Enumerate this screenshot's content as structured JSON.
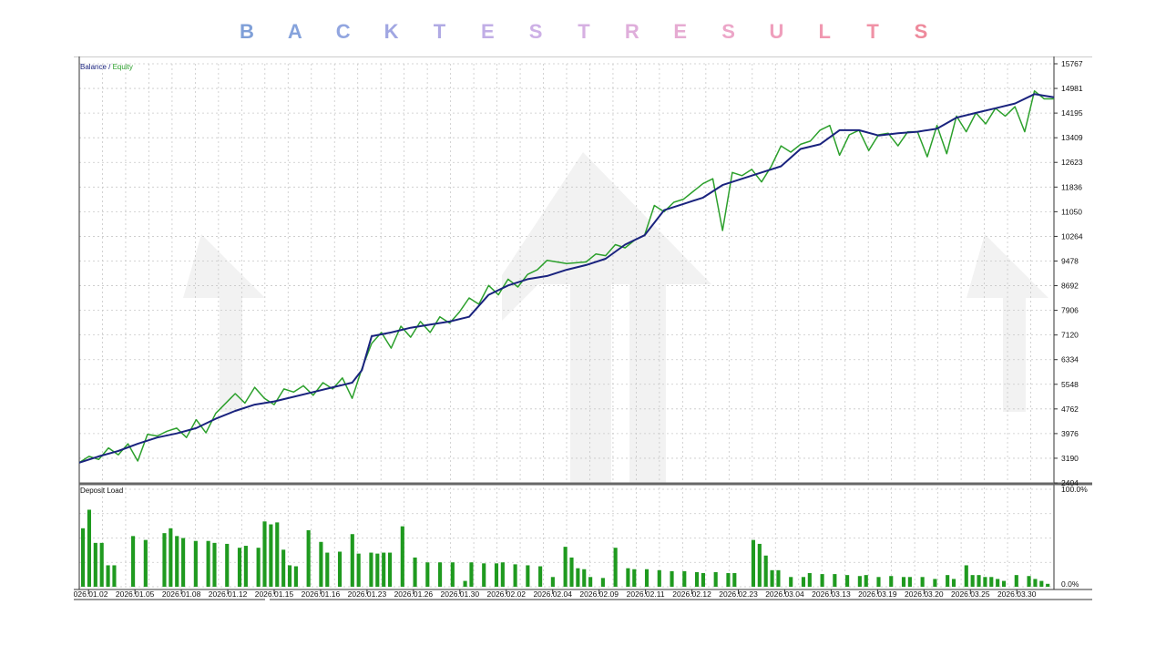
{
  "title": {
    "letters": [
      "B",
      "A",
      "C",
      "K",
      "T",
      "E",
      "S",
      "T",
      "R",
      "E",
      "S",
      "U",
      "L",
      "T",
      "S"
    ],
    "colors": [
      "#7f9fd8",
      "#86a3dc",
      "#92a6e0",
      "#a0a6e2",
      "#b0aae4",
      "#c1aee6",
      "#cdb0e6",
      "#d6b0e2",
      "#dfaedb",
      "#e6abd2",
      "#eca6c8",
      "#ef9fbc",
      "#f098b0",
      "#f092a6",
      "#ee8a9c"
    ]
  },
  "panels": {
    "balance_legend": {
      "balance": "Balance",
      "separator": " / ",
      "equity": "Equity"
    },
    "deposit_legend": "Deposit Load"
  },
  "colors": {
    "balance": "#1a237e",
    "equity": "#2ca02c",
    "deposit": "#1f9a1f",
    "grid": "#c8c8c8",
    "axis": "#333333"
  },
  "chart_data": [
    {
      "type": "line",
      "x_type": "index",
      "y_ticks": [
        "15767",
        "14981",
        "14195",
        "13409",
        "12623",
        "11836",
        "11050",
        "10264",
        "9478",
        "8692",
        "7906",
        "7120",
        "6334",
        "5548",
        "4762",
        "3976",
        "3190",
        "2404"
      ],
      "ylim": [
        2404,
        15767
      ],
      "x_domain": [
        0,
        100
      ],
      "series": [
        {
          "name": "Balance",
          "points": [
            [
              0,
              3050
            ],
            [
              2,
              3250
            ],
            [
              4,
              3420
            ],
            [
              6,
              3650
            ],
            [
              8,
              3850
            ],
            [
              10,
              3980
            ],
            [
              12,
              4150
            ],
            [
              14,
              4450
            ],
            [
              16,
              4700
            ],
            [
              18,
              4900
            ],
            [
              20,
              5000
            ],
            [
              22,
              5150
            ],
            [
              24,
              5300
            ],
            [
              26,
              5450
            ],
            [
              28,
              5600
            ],
            [
              29,
              6000
            ],
            [
              30,
              7080
            ],
            [
              32,
              7200
            ],
            [
              34,
              7350
            ],
            [
              36,
              7450
            ],
            [
              38,
              7550
            ],
            [
              40,
              7700
            ],
            [
              42,
              8400
            ],
            [
              44,
              8700
            ],
            [
              46,
              8900
            ],
            [
              48,
              9000
            ],
            [
              50,
              9200
            ],
            [
              52,
              9350
            ],
            [
              54,
              9550
            ],
            [
              56,
              10000
            ],
            [
              58,
              10300
            ],
            [
              60,
              11100
            ],
            [
              62,
              11300
            ],
            [
              64,
              11500
            ],
            [
              66,
              11900
            ],
            [
              68,
              12100
            ],
            [
              70,
              12300
            ],
            [
              72,
              12500
            ],
            [
              74,
              13050
            ],
            [
              76,
              13200
            ],
            [
              78,
              13650
            ],
            [
              80,
              13650
            ],
            [
              82,
              13480
            ],
            [
              84,
              13550
            ],
            [
              86,
              13600
            ],
            [
              88,
              13700
            ],
            [
              90,
              14050
            ],
            [
              92,
              14200
            ],
            [
              94,
              14350
            ],
            [
              96,
              14500
            ],
            [
              98,
              14800
            ],
            [
              100,
              14700
            ]
          ]
        },
        {
          "name": "Equity",
          "points": [
            [
              0,
              3050
            ],
            [
              1,
              3250
            ],
            [
              2,
              3150
            ],
            [
              3,
              3520
            ],
            [
              4,
              3300
            ],
            [
              5,
              3650
            ],
            [
              6,
              3100
            ],
            [
              7,
              3950
            ],
            [
              8,
              3900
            ],
            [
              9,
              4050
            ],
            [
              10,
              4150
            ],
            [
              11,
              3850
            ],
            [
              12,
              4420
            ],
            [
              13,
              4000
            ],
            [
              14,
              4620
            ],
            [
              16,
              5250
            ],
            [
              17,
              4950
            ],
            [
              18,
              5450
            ],
            [
              19,
              5100
            ],
            [
              20,
              4900
            ],
            [
              21,
              5400
            ],
            [
              22,
              5300
            ],
            [
              23,
              5500
            ],
            [
              24,
              5200
            ],
            [
              25,
              5600
            ],
            [
              26,
              5400
            ],
            [
              27,
              5750
            ],
            [
              28,
              5100
            ],
            [
              29,
              6050
            ],
            [
              30,
              6850
            ],
            [
              31,
              7200
            ],
            [
              32,
              6700
            ],
            [
              33,
              7400
            ],
            [
              34,
              7050
            ],
            [
              35,
              7550
            ],
            [
              36,
              7200
            ],
            [
              37,
              7700
            ],
            [
              38,
              7500
            ],
            [
              39,
              7850
            ],
            [
              40,
              8300
            ],
            [
              41,
              8100
            ],
            [
              42,
              8700
            ],
            [
              43,
              8400
            ],
            [
              44,
              8900
            ],
            [
              45,
              8650
            ],
            [
              46,
              9050
            ],
            [
              47,
              9200
            ],
            [
              48,
              9500
            ],
            [
              50,
              9400
            ],
            [
              52,
              9450
            ],
            [
              53,
              9700
            ],
            [
              54,
              9650
            ],
            [
              55,
              10000
            ],
            [
              56,
              9900
            ],
            [
              57,
              10150
            ],
            [
              58,
              10300
            ],
            [
              59,
              11250
            ],
            [
              60,
              11050
            ],
            [
              61,
              11350
            ],
            [
              62,
              11450
            ],
            [
              63,
              11700
            ],
            [
              64,
              11950
            ],
            [
              65,
              12100
            ],
            [
              66,
              10450
            ],
            [
              67,
              12300
            ],
            [
              68,
              12200
            ],
            [
              69,
              12400
            ],
            [
              70,
              12000
            ],
            [
              71,
              12500
            ],
            [
              72,
              13150
            ],
            [
              73,
              12950
            ],
            [
              74,
              13200
            ],
            [
              75,
              13300
            ],
            [
              76,
              13650
            ],
            [
              77,
              13800
            ],
            [
              78,
              12850
            ],
            [
              79,
              13500
            ],
            [
              80,
              13650
            ],
            [
              81,
              13000
            ],
            [
              82,
              13500
            ],
            [
              83,
              13550
            ],
            [
              84,
              13150
            ],
            [
              85,
              13600
            ],
            [
              86,
              13600
            ],
            [
              87,
              12800
            ],
            [
              88,
              13800
            ],
            [
              89,
              12900
            ],
            [
              90,
              14100
            ],
            [
              91,
              13600
            ],
            [
              92,
              14200
            ],
            [
              93,
              13850
            ],
            [
              94,
              14350
            ],
            [
              95,
              14100
            ],
            [
              96,
              14400
            ],
            [
              97,
              13600
            ],
            [
              98,
              14900
            ],
            [
              99,
              14650
            ],
            [
              100,
              14650
            ]
          ]
        }
      ]
    },
    {
      "type": "bar",
      "title": "Deposit Load",
      "y_ticks": [
        "100.0%",
        "0.0%"
      ],
      "ylim": [
        0,
        100
      ],
      "x_ticks": [
        "2026.01.02",
        "2026.01.05",
        "2026.01.08",
        "2026.01.12",
        "2026.01.15",
        "2026.01.16",
        "2026.01.23",
        "2026.01.26",
        "2026.01.30",
        "2026.02.02",
        "2026.02.04",
        "2026.02.09",
        "2026.02.11",
        "2026.02.12",
        "2026.02.23",
        "2026.03.04",
        "2026.03.13",
        "2026.03.19",
        "2026.03.20",
        "2026.03.25",
        "2026.03.30"
      ],
      "values": [
        60,
        79,
        45,
        45,
        22,
        22,
        0,
        0,
        52,
        0,
        48,
        0,
        0,
        55,
        60,
        52,
        50,
        0,
        47,
        0,
        47,
        45,
        0,
        44,
        0,
        40,
        42,
        0,
        40,
        67,
        64,
        66,
        38,
        22,
        21,
        0,
        58,
        0,
        46,
        35,
        0,
        36,
        0,
        54,
        34,
        0,
        35,
        34,
        35,
        35,
        0,
        62,
        0,
        30,
        0,
        25,
        0,
        25,
        0,
        25,
        0,
        6,
        25,
        0,
        24,
        0,
        24,
        25,
        0,
        23,
        0,
        22,
        0,
        21,
        0,
        10,
        0,
        41,
        30,
        19,
        18,
        10,
        0,
        9,
        0,
        40,
        0,
        19,
        18,
        0,
        18,
        0,
        17,
        0,
        16,
        0,
        16,
        0,
        15,
        14,
        0,
        15,
        0,
        14,
        14,
        0,
        0,
        48,
        44,
        32,
        17,
        17,
        0,
        10,
        0,
        10,
        14,
        0,
        13,
        0,
        13,
        0,
        12,
        0,
        11,
        12,
        0,
        10,
        0,
        11,
        0,
        10,
        10,
        0,
        10,
        0,
        8,
        0,
        12,
        8,
        0,
        22,
        12,
        12,
        10,
        10,
        8,
        6,
        0,
        12,
        0,
        11,
        8,
        6,
        3
      ]
    }
  ]
}
